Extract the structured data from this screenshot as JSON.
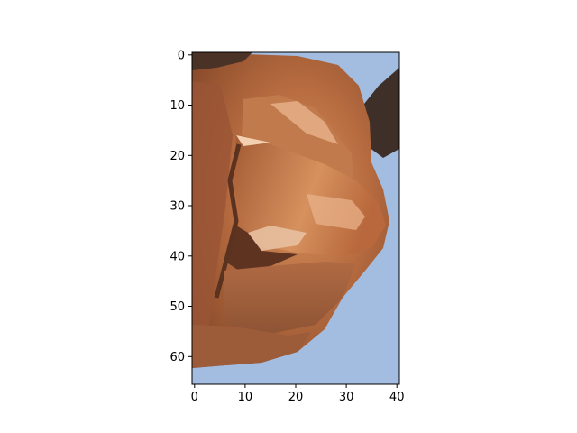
{
  "image": {
    "description_visible": "pixelated close-up crop rendered as a plot",
    "colors": {
      "background_blue": "#a3bde0",
      "skin_dark": "#8a4a2c",
      "skin_mid": "#b3683f",
      "skin_light": "#d08a5c",
      "highlight": "#f0c8a0",
      "shadow": "#5a3220",
      "hair_dark": "#3a2a20"
    }
  },
  "axes": {
    "x_ticks": [
      "0",
      "10",
      "20",
      "30",
      "40"
    ],
    "y_ticks": [
      "0",
      "10",
      "20",
      "30",
      "40",
      "50",
      "60"
    ],
    "xlim": [
      -0.5,
      40.5
    ],
    "ylim": [
      65.5,
      -0.5
    ]
  }
}
